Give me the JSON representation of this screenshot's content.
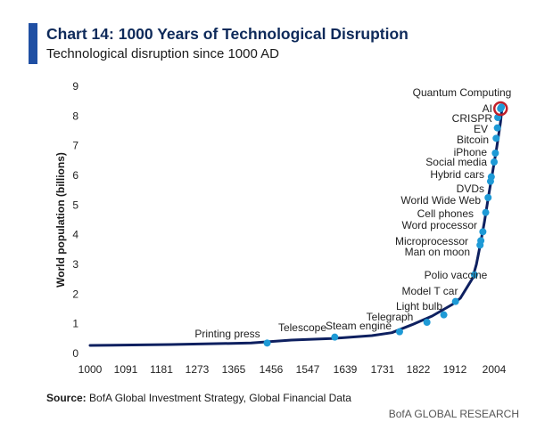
{
  "header": {
    "title": "Chart 14: 1000 Years of Technological Disruption",
    "subtitle": "Technological disruption since 1000 AD"
  },
  "footer": {
    "source_label": "Source:",
    "source_text": "BofA Global Investment Strategy, Global Financial Data",
    "brand": "BofA GLOBAL RESEARCH"
  },
  "colors": {
    "accent": "#1f4fa3",
    "line": "#0e2060",
    "marker": "#1e9ad6",
    "highlight": "#c0202a"
  },
  "chart_data": {
    "type": "line",
    "title": "Chart 14: 1000 Years of Technological Disruption",
    "subtitle": "Technological disruption since 1000 AD",
    "xlabel": "",
    "ylabel": "World population (billions)",
    "xlim": [
      1000,
      2050
    ],
    "ylim": [
      0,
      9
    ],
    "x_ticks": [
      1000,
      1091,
      1181,
      1273,
      1365,
      1456,
      1547,
      1639,
      1731,
      1822,
      1912,
      2004
    ],
    "y_ticks": [
      0,
      1,
      2,
      3,
      4,
      5,
      6,
      7,
      8,
      9
    ],
    "grid": false,
    "series": [
      {
        "x": [
          1000,
          1200,
          1400,
          1500,
          1600,
          1700,
          1750,
          1800,
          1850,
          1900,
          1920,
          1940,
          1950,
          1960,
          1970,
          1980,
          1990,
          2000,
          2010,
          2020,
          2023
        ],
        "y": [
          0.27,
          0.3,
          0.35,
          0.45,
          0.5,
          0.6,
          0.7,
          0.97,
          1.26,
          1.65,
          1.86,
          2.3,
          2.52,
          3.0,
          3.7,
          4.45,
          5.3,
          6.1,
          6.9,
          7.8,
          8.2
        ]
      }
    ],
    "events": [
      {
        "label": "Printing press",
        "x": 1440,
        "y": 0.35
      },
      {
        "label": "Telescope",
        "x": 1608,
        "y": 0.55
      },
      {
        "label": "Steam engine",
        "x": 1769,
        "y": 0.73
      },
      {
        "label": "Telegraph",
        "x": 1837,
        "y": 1.05
      },
      {
        "label": "Light bulb",
        "x": 1879,
        "y": 1.3
      },
      {
        "label": "Model T car",
        "x": 1908,
        "y": 1.75
      },
      {
        "label": "Polio vaccine",
        "x": 1955,
        "y": 2.65
      },
      {
        "label": "Man on moon",
        "x": 1969,
        "y": 3.65
      },
      {
        "label": "Microprocessor",
        "x": 1971,
        "y": 3.8
      },
      {
        "label": "Word processor",
        "x": 1976,
        "y": 4.1
      },
      {
        "label": "Cell phones",
        "x": 1983,
        "y": 4.75
      },
      {
        "label": "World Wide Web",
        "x": 1989,
        "y": 5.25
      },
      {
        "label": "DVDs",
        "x": 1995,
        "y": 5.8
      },
      {
        "label": "Hybrid cars",
        "x": 1997,
        "y": 5.95
      },
      {
        "label": "Social media",
        "x": 2004,
        "y": 6.45
      },
      {
        "label": "iPhone",
        "x": 2007,
        "y": 6.75
      },
      {
        "label": "Bitcoin",
        "x": 2009,
        "y": 7.25
      },
      {
        "label": "EV",
        "x": 2012,
        "y": 7.6
      },
      {
        "label": "CRISPR",
        "x": 2013,
        "y": 7.95
      },
      {
        "label": "AI",
        "x": 2020,
        "y": 8.25
      },
      {
        "label": "Quantum Computing",
        "x": 2022,
        "y": 8.3
      }
    ],
    "highlighted_event": "AI"
  }
}
